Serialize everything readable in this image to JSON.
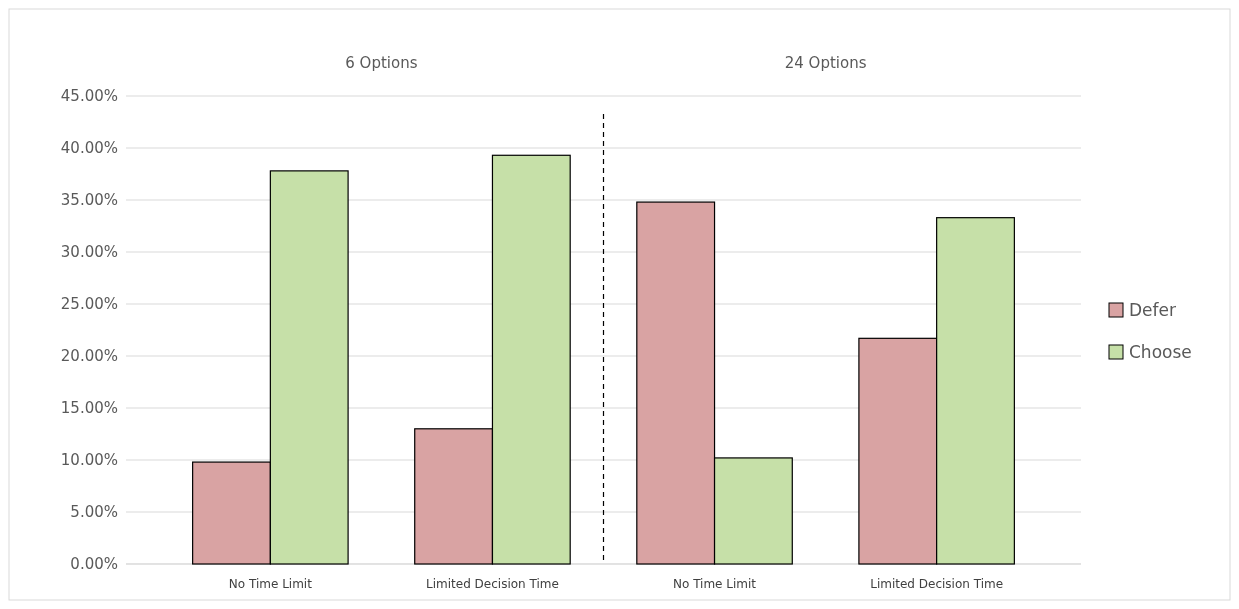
{
  "chart_data": {
    "type": "bar",
    "categories": [
      "No Time Limit",
      "Limited Decision Time",
      "No Time Limit",
      "Limited Decision Time"
    ],
    "series": [
      {
        "name": "Defer",
        "color": "#d9a3a3",
        "values": [
          9.8,
          13.0,
          34.8,
          21.7
        ]
      },
      {
        "name": "Choose",
        "color": "#c6e0a8",
        "values": [
          37.8,
          39.3,
          10.2,
          33.3
        ]
      }
    ],
    "ylim": [
      0,
      45
    ],
    "yticks": [
      {
        "value": 0,
        "label": "0.00%"
      },
      {
        "value": 5,
        "label": "5.00%"
      },
      {
        "value": 10,
        "label": "10.00%"
      },
      {
        "value": 15,
        "label": "15.00%"
      },
      {
        "value": 20,
        "label": "20.00%"
      },
      {
        "value": 25,
        "label": "25.00%"
      },
      {
        "value": 30,
        "label": "30.00%"
      },
      {
        "value": 35,
        "label": "35.00%"
      },
      {
        "value": 40,
        "label": "40.00%"
      },
      {
        "value": 45,
        "label": "45.00%"
      }
    ],
    "annotations": [
      "6 Options",
      "24 Options"
    ],
    "grid": "y",
    "legend": "right"
  }
}
